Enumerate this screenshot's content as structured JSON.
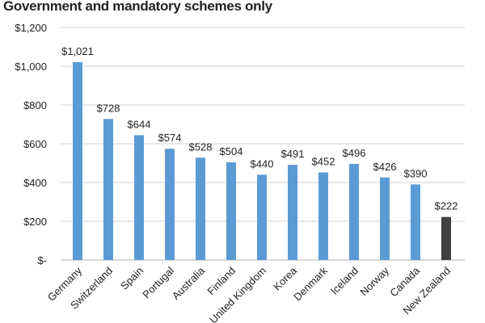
{
  "chart_data": {
    "type": "bar",
    "title": "Government and mandatory schemes only",
    "categories": [
      "Germany",
      "Switzerland",
      "Spain",
      "Portugal",
      "Australia",
      "Finland",
      "United Kingdom",
      "Korea",
      "Denmark",
      "Iceland",
      "Norway",
      "Canada",
      "New Zealand"
    ],
    "values": [
      1021,
      728,
      644,
      574,
      528,
      504,
      440,
      491,
      452,
      496,
      426,
      390,
      222
    ],
    "data_labels": [
      "$1,021",
      "$728",
      "$644",
      "$574",
      "$528",
      "$504",
      "$440",
      "$491",
      "$452",
      "$496",
      "$426",
      "$390",
      "$222"
    ],
    "highlight_category": "New Zealand",
    "ylim": [
      0,
      1200
    ],
    "yticks": [
      0,
      200,
      400,
      600,
      800,
      1000,
      1200
    ],
    "ytick_labels": [
      "$-",
      "$200",
      "$400",
      "$600",
      "$800",
      "$1,000",
      "$1,200"
    ],
    "xlabel": "",
    "ylabel": "",
    "grid": true,
    "legend": "none",
    "colors": {
      "bar": "#5b9bd5",
      "highlight": "#404040",
      "grid": "#d9d9d9"
    }
  }
}
